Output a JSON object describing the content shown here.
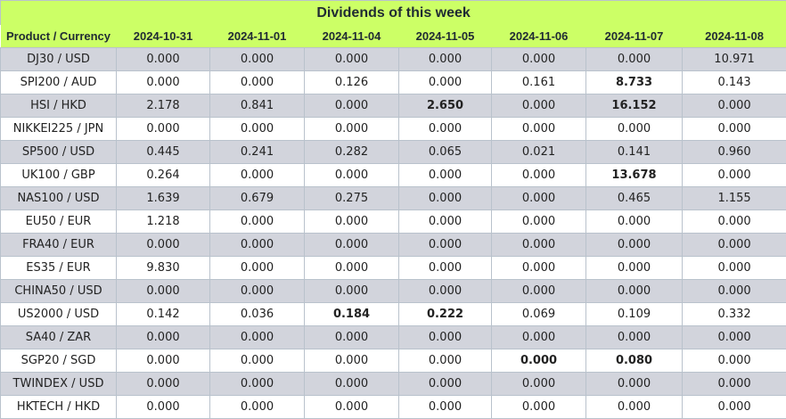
{
  "title": "Dividends of this week",
  "columns": [
    "Product / Currency",
    "2024-10-31",
    "2024-11-01",
    "2024-11-04",
    "2024-11-05",
    "2024-11-06",
    "2024-11-07",
    "2024-11-08"
  ],
  "rows": [
    {
      "product": "DJ30 / USD",
      "values": [
        "0.000",
        "0.000",
        "0.000",
        "0.000",
        "0.000",
        "0.000",
        "10.971"
      ],
      "bold": [
        false,
        false,
        false,
        false,
        false,
        false,
        false
      ]
    },
    {
      "product": "SPI200 / AUD",
      "values": [
        "0.000",
        "0.000",
        "0.126",
        "0.000",
        "0.161",
        "8.733",
        "0.143"
      ],
      "bold": [
        false,
        false,
        false,
        false,
        false,
        true,
        false
      ]
    },
    {
      "product": "HSI / HKD",
      "values": [
        "2.178",
        "0.841",
        "0.000",
        "2.650",
        "0.000",
        "16.152",
        "0.000"
      ],
      "bold": [
        false,
        false,
        false,
        true,
        false,
        true,
        false
      ]
    },
    {
      "product": "NIKKEI225 / JPN",
      "values": [
        "0.000",
        "0.000",
        "0.000",
        "0.000",
        "0.000",
        "0.000",
        "0.000"
      ],
      "bold": [
        false,
        false,
        false,
        false,
        false,
        false,
        false
      ]
    },
    {
      "product": "SP500 / USD",
      "values": [
        "0.445",
        "0.241",
        "0.282",
        "0.065",
        "0.021",
        "0.141",
        "0.960"
      ],
      "bold": [
        false,
        false,
        false,
        false,
        false,
        false,
        false
      ]
    },
    {
      "product": "UK100 / GBP",
      "values": [
        "0.264",
        "0.000",
        "0.000",
        "0.000",
        "0.000",
        "13.678",
        "0.000"
      ],
      "bold": [
        false,
        false,
        false,
        false,
        false,
        true,
        false
      ]
    },
    {
      "product": "NAS100 / USD",
      "values": [
        "1.639",
        "0.679",
        "0.275",
        "0.000",
        "0.000",
        "0.465",
        "1.155"
      ],
      "bold": [
        false,
        false,
        false,
        false,
        false,
        false,
        false
      ]
    },
    {
      "product": "EU50 / EUR",
      "values": [
        "1.218",
        "0.000",
        "0.000",
        "0.000",
        "0.000",
        "0.000",
        "0.000"
      ],
      "bold": [
        false,
        false,
        false,
        false,
        false,
        false,
        false
      ]
    },
    {
      "product": "FRA40 / EUR",
      "values": [
        "0.000",
        "0.000",
        "0.000",
        "0.000",
        "0.000",
        "0.000",
        "0.000"
      ],
      "bold": [
        false,
        false,
        false,
        false,
        false,
        false,
        false
      ]
    },
    {
      "product": "ES35 / EUR",
      "values": [
        "9.830",
        "0.000",
        "0.000",
        "0.000",
        "0.000",
        "0.000",
        "0.000"
      ],
      "bold": [
        false,
        false,
        false,
        false,
        false,
        false,
        false
      ]
    },
    {
      "product": "CHINA50 / USD",
      "values": [
        "0.000",
        "0.000",
        "0.000",
        "0.000",
        "0.000",
        "0.000",
        "0.000"
      ],
      "bold": [
        false,
        false,
        false,
        false,
        false,
        false,
        false
      ]
    },
    {
      "product": "US2000 / USD",
      "values": [
        "0.142",
        "0.036",
        "0.184",
        "0.222",
        "0.069",
        "0.109",
        "0.332"
      ],
      "bold": [
        false,
        false,
        true,
        true,
        false,
        false,
        false
      ]
    },
    {
      "product": "SA40 / ZAR",
      "values": [
        "0.000",
        "0.000",
        "0.000",
        "0.000",
        "0.000",
        "0.000",
        "0.000"
      ],
      "bold": [
        false,
        false,
        false,
        false,
        false,
        false,
        false
      ]
    },
    {
      "product": "SGP20 / SGD",
      "values": [
        "0.000",
        "0.000",
        "0.000",
        "0.000",
        "0.000",
        "0.080",
        "0.000"
      ],
      "bold": [
        false,
        false,
        false,
        false,
        true,
        true,
        false
      ]
    },
    {
      "product": "TWINDEX / USD",
      "values": [
        "0.000",
        "0.000",
        "0.000",
        "0.000",
        "0.000",
        "0.000",
        "0.000"
      ],
      "bold": [
        false,
        false,
        false,
        false,
        false,
        false,
        false
      ]
    },
    {
      "product": "HKTECH / HKD",
      "values": [
        "0.000",
        "0.000",
        "0.000",
        "0.000",
        "0.000",
        "0.000",
        "0.000"
      ],
      "bold": [
        false,
        false,
        false,
        false,
        false,
        false,
        false
      ]
    }
  ],
  "colors": {
    "header_bg": "#ccff66",
    "shade_row": "#d2d4dc",
    "plain_row": "#ffffff",
    "border": "#b9c2cc"
  }
}
